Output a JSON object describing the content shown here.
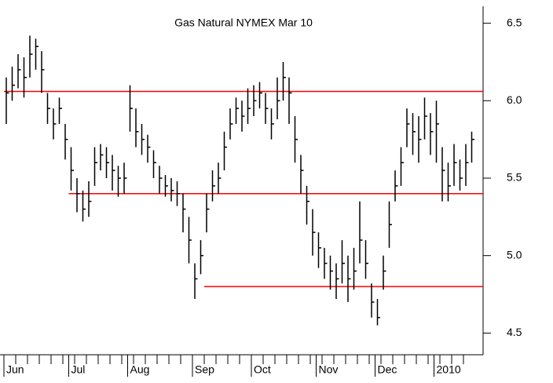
{
  "chart_data": {
    "type": "ohlc",
    "title": "Gas Natural NYMEX Mar 10",
    "color": "#000000",
    "line_color": "#ff0000",
    "ylim": [
      4.36,
      6.65
    ],
    "yticks": [
      4.5,
      {
        "value": 5,
        "label": "5.0"
      },
      5.5,
      {
        "value": 6,
        "label": "6.0"
      },
      6.5
    ],
    "categories": [
      "Jun",
      null,
      null,
      null,
      null,
      null,
      null,
      null,
      null,
      null,
      null,
      "Jul",
      null,
      null,
      null,
      null,
      null,
      null,
      null,
      null,
      null,
      "Aug",
      null,
      null,
      null,
      null,
      null,
      null,
      null,
      null,
      null,
      null,
      "Sep",
      null,
      null,
      null,
      null,
      null,
      null,
      null,
      null,
      null,
      "Oct",
      null,
      null,
      null,
      null,
      null,
      null,
      null,
      null,
      null,
      null,
      "Nov",
      null,
      null,
      null,
      null,
      null,
      null,
      null,
      null,
      null,
      "Dec",
      null,
      null,
      null,
      null,
      null,
      null,
      null,
      null,
      null,
      "2010",
      null,
      null,
      null,
      null,
      null,
      null
    ],
    "high": [
      6.15,
      6.22,
      6.3,
      6.28,
      6.42,
      6.4,
      6.32,
      6.05,
      5.95,
      6.02,
      5.85,
      5.7,
      5.5,
      5.42,
      5.48,
      5.7,
      5.72,
      5.7,
      5.65,
      5.58,
      5.6,
      6.1,
      5.95,
      5.85,
      5.78,
      5.68,
      5.58,
      5.52,
      5.5,
      5.48,
      5.4,
      5.25,
      4.95,
      5.1,
      5.4,
      5.55,
      5.6,
      5.8,
      5.95,
      6.02,
      6.0,
      6.08,
      6.1,
      6.12,
      6.05,
      5.95,
      6.15,
      6.25,
      6.15,
      5.9,
      5.65,
      5.45,
      5.3,
      5.15,
      5.05,
      5.0,
      4.95,
      5.1,
      5.0,
      5.05,
      5.35,
      5.1,
      4.82,
      4.72,
      5.0,
      5.35,
      5.55,
      5.7,
      5.95,
      5.92,
      5.9,
      6.02,
      5.92,
      6.0,
      5.7,
      5.6,
      5.72,
      5.62,
      5.72,
      5.8
    ],
    "low": [
      5.85,
      6.0,
      6.08,
      6.02,
      6.15,
      6.2,
      6.05,
      5.85,
      5.75,
      5.85,
      5.62,
      5.42,
      5.28,
      5.22,
      5.25,
      5.45,
      5.55,
      5.5,
      5.42,
      5.38,
      5.4,
      5.8,
      5.7,
      5.65,
      5.6,
      5.5,
      5.4,
      5.38,
      5.35,
      5.32,
      5.15,
      4.95,
      4.72,
      4.88,
      5.15,
      5.35,
      5.4,
      5.55,
      5.75,
      5.85,
      5.8,
      5.85,
      5.9,
      5.95,
      5.85,
      5.75,
      5.88,
      6.0,
      5.85,
      5.6,
      5.4,
      5.2,
      5.0,
      4.92,
      4.85,
      4.78,
      4.72,
      4.82,
      4.7,
      4.78,
      4.95,
      4.85,
      4.6,
      4.55,
      4.78,
      5.05,
      5.35,
      5.45,
      5.7,
      5.65,
      5.6,
      5.75,
      5.65,
      5.6,
      5.35,
      5.35,
      5.45,
      5.42,
      5.45,
      5.6
    ],
    "close": [
      6.05,
      6.1,
      6.2,
      6.15,
      6.3,
      6.35,
      6.2,
      5.95,
      5.85,
      5.95,
      5.75,
      5.55,
      5.4,
      5.3,
      5.35,
      5.6,
      5.65,
      5.6,
      5.55,
      5.5,
      5.5,
      5.95,
      5.8,
      5.75,
      5.7,
      5.6,
      5.5,
      5.45,
      5.42,
      5.4,
      5.3,
      5.1,
      4.85,
      5.0,
      5.3,
      5.45,
      5.5,
      5.7,
      5.85,
      5.95,
      5.9,
      5.95,
      6.0,
      6.05,
      5.95,
      5.85,
      6.0,
      6.15,
      6.05,
      5.75,
      5.55,
      5.35,
      5.15,
      5.05,
      4.95,
      4.9,
      4.85,
      4.95,
      4.85,
      4.9,
      5.1,
      4.95,
      4.7,
      4.6,
      4.9,
      5.2,
      5.45,
      5.6,
      5.85,
      5.8,
      5.75,
      5.9,
      5.8,
      5.85,
      5.55,
      5.45,
      5.6,
      5.5,
      5.6,
      5.75
    ],
    "lines": [
      {
        "value": 6.06,
        "start": 0
      },
      {
        "value": 5.4,
        "start": 11
      },
      {
        "value": 4.8,
        "start": 34
      }
    ]
  }
}
